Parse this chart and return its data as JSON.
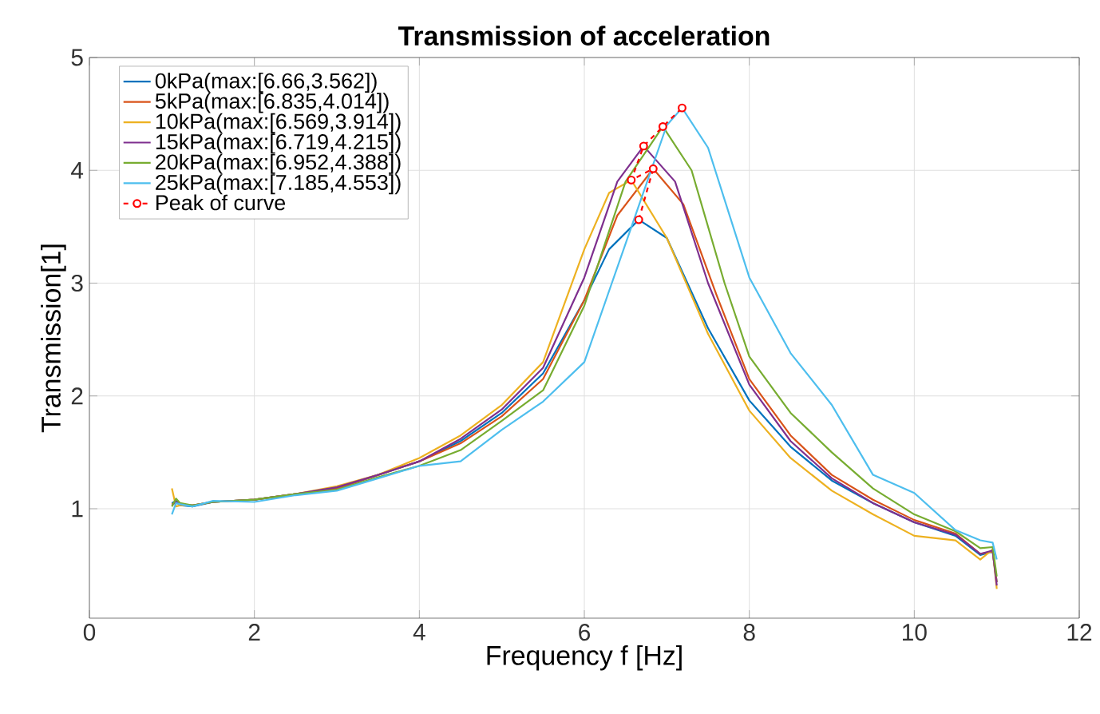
{
  "chart_data": {
    "type": "line",
    "title": "**Transmission of acceleration**",
    "xlabel": "Frequency f [Hz]",
    "ylabel": "Transmission[1]",
    "xlim": [
      0,
      12
    ],
    "ylim": [
      0.03,
      5
    ],
    "xticks": [
      0,
      2,
      4,
      6,
      8,
      10,
      12
    ],
    "yticks": [
      1,
      2,
      3,
      4,
      5
    ],
    "grid": true,
    "legend": "top left",
    "series": [
      {
        "name": "0kPa(max:[6.66,3.562])",
        "color": "#0072bd",
        "x": [
          1,
          1.05,
          1.1,
          1.25,
          1.5,
          2,
          2.5,
          3,
          3.5,
          4,
          4.5,
          5,
          5.5,
          6,
          6.3,
          6.66,
          7,
          7.5,
          8,
          8.5,
          9,
          9.5,
          10,
          10.5,
          10.8,
          10.95,
          11
        ],
        "values": [
          1.05,
          1.07,
          1.03,
          1.02,
          1.06,
          1.08,
          1.13,
          1.18,
          1.3,
          1.42,
          1.6,
          1.85,
          2.2,
          2.85,
          3.3,
          3.562,
          3.4,
          2.6,
          1.96,
          1.55,
          1.25,
          1.05,
          0.88,
          0.76,
          0.59,
          0.62,
          0.35
        ]
      },
      {
        "name": "5kPa(max:[6.835,4.014])",
        "color": "#d95319",
        "x": [
          1,
          1.05,
          1.1,
          1.25,
          1.5,
          2,
          2.5,
          3,
          3.5,
          4,
          4.5,
          5,
          5.5,
          6,
          6.4,
          6.835,
          7.2,
          7.6,
          8,
          8.5,
          9,
          9.5,
          10,
          10.5,
          10.8,
          10.95,
          11
        ],
        "values": [
          1.04,
          1.06,
          1.03,
          1.03,
          1.06,
          1.08,
          1.13,
          1.18,
          1.3,
          1.42,
          1.58,
          1.82,
          2.15,
          2.85,
          3.6,
          4.014,
          3.7,
          2.9,
          2.15,
          1.65,
          1.3,
          1.08,
          0.9,
          0.78,
          0.6,
          0.62,
          0.35
        ]
      },
      {
        "name": "10kPa(max:[6.569,3.914])",
        "color": "#edb120",
        "x": [
          1,
          1.05,
          1.1,
          1.25,
          1.5,
          2,
          2.5,
          3,
          3.5,
          4,
          4.5,
          5,
          5.5,
          6,
          6.3,
          6.569,
          7,
          7.5,
          8,
          8.5,
          9,
          9.5,
          10,
          10.5,
          10.8,
          10.95,
          11
        ],
        "values": [
          1.18,
          1.02,
          1.03,
          1.03,
          1.06,
          1.08,
          1.13,
          1.2,
          1.3,
          1.45,
          1.65,
          1.92,
          2.3,
          3.3,
          3.8,
          3.914,
          3.4,
          2.55,
          1.87,
          1.45,
          1.16,
          0.95,
          0.76,
          0.72,
          0.55,
          0.64,
          0.29
        ]
      },
      {
        "name": "15kPa(max:[6.719,4.215])",
        "color": "#7e2f8e",
        "x": [
          1,
          1.05,
          1.1,
          1.25,
          1.5,
          2,
          2.5,
          3,
          3.5,
          4,
          4.5,
          5,
          5.5,
          6,
          6.4,
          6.719,
          7.1,
          7.5,
          8,
          8.5,
          9,
          9.5,
          10,
          10.5,
          10.8,
          10.95,
          11
        ],
        "values": [
          1.03,
          1.06,
          1.04,
          1.03,
          1.06,
          1.08,
          1.13,
          1.19,
          1.3,
          1.42,
          1.62,
          1.88,
          2.25,
          3.05,
          3.9,
          4.215,
          3.9,
          3.0,
          2.1,
          1.6,
          1.27,
          1.05,
          0.88,
          0.77,
          0.6,
          0.63,
          0.32
        ]
      },
      {
        "name": "20kPa(max:[6.952,4.388])",
        "color": "#77ac30",
        "x": [
          1,
          1.05,
          1.1,
          1.25,
          1.5,
          2,
          2.5,
          3,
          3.5,
          4,
          4.5,
          5,
          5.5,
          6,
          6.5,
          6.952,
          7.3,
          7.7,
          8,
          8.5,
          9,
          9.5,
          10,
          10.5,
          10.8,
          10.95,
          11
        ],
        "values": [
          1.02,
          1.09,
          1.05,
          1.03,
          1.06,
          1.08,
          1.13,
          1.17,
          1.28,
          1.38,
          1.52,
          1.78,
          2.05,
          2.8,
          3.9,
          4.388,
          4.0,
          3.0,
          2.35,
          1.85,
          1.5,
          1.18,
          0.95,
          0.8,
          0.65,
          0.66,
          0.4
        ]
      },
      {
        "name": "25kPa(max:[7.185,4.553])",
        "color": "#4dbeee",
        "x": [
          1,
          1.05,
          1.1,
          1.25,
          1.5,
          2,
          2.5,
          3,
          3.5,
          4,
          4.5,
          5,
          5.5,
          6,
          6.5,
          7,
          7.185,
          7.5,
          8,
          8.5,
          9,
          9.5,
          10,
          10.5,
          10.8,
          10.95,
          11
        ],
        "values": [
          0.95,
          1.05,
          1.04,
          1.02,
          1.07,
          1.06,
          1.12,
          1.16,
          1.27,
          1.38,
          1.42,
          1.7,
          1.95,
          2.3,
          3.35,
          4.4,
          4.553,
          4.2,
          3.05,
          2.38,
          1.92,
          1.3,
          1.14,
          0.81,
          0.72,
          0.7,
          0.55
        ]
      },
      {
        "name": "Peak of curve",
        "color": "#ff0000",
        "marker": "circle",
        "line_style": "dashed",
        "x": [
          6.66,
          6.835,
          6.569,
          6.719,
          6.952,
          7.185
        ],
        "values": [
          3.562,
          4.014,
          3.914,
          4.215,
          4.388,
          4.553
        ]
      }
    ]
  }
}
